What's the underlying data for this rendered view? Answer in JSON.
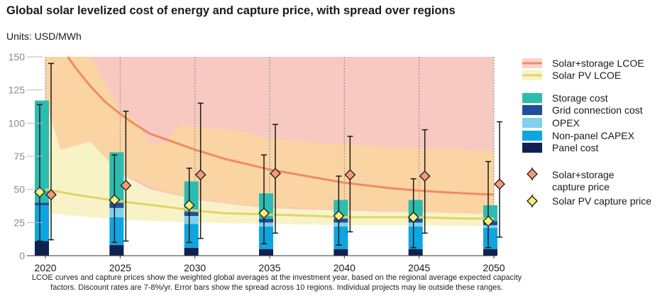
{
  "title": "Global solar levelized cost of energy and capture price, with spread over regions",
  "units": "Units: USD/MWh",
  "footnote": "LCOE curves and capture prices show the weighted global averages at the investment year, based on the regional average expected capacity factors. Discount rates are 7-8%/yr. Error bars show the spread across 10 regions. Individual projects may lie outside these ranges.",
  "colors": {
    "storage_cost": "#2cbcb0",
    "grid_connection_cost": "#1f4f9c",
    "opex": "#82d0ec",
    "non_panel_capex": "#0ea5e0",
    "panel_cost": "#0f2150",
    "storage_lcoe_line": "#f08b62",
    "storage_lcoe_band": "#f7c9c1",
    "storage_lcoe_band_inner": "#fbd4a3",
    "pv_lcoe_line": "#e0d56a",
    "pv_lcoe_band": "#f8f3c7",
    "storage_capture_marker": "#f39a78",
    "pv_capture_marker": "#f6ee7c"
  },
  "legend": {
    "lines": [
      {
        "label": "Solar+storage LCOE",
        "color_key": "storage_lcoe_line"
      },
      {
        "label": "Solar PV LCOE",
        "color_key": "pv_lcoe_line"
      }
    ],
    "bars": [
      {
        "label": "Storage cost",
        "color_key": "storage_cost"
      },
      {
        "label": "Grid connection cost",
        "color_key": "grid_connection_cost"
      },
      {
        "label": "OPEX",
        "color_key": "opex"
      },
      {
        "label": "Non-panel CAPEX",
        "color_key": "non_panel_capex"
      },
      {
        "label": "Panel cost",
        "color_key": "panel_cost"
      }
    ],
    "markers": [
      {
        "label": "Solar+storage capture price",
        "symbol": "diamond-icon",
        "color_key": "storage_capture_marker"
      },
      {
        "label": "Solar PV capture price",
        "symbol": "diamond-icon",
        "color_key": "pv_capture_marker"
      }
    ]
  },
  "chart_data": {
    "type": "bar",
    "xlabel": "",
    "ylabel": "",
    "ylim": [
      0,
      150
    ],
    "xlim": [
      2020,
      2050
    ],
    "yticks": [
      0,
      25,
      50,
      75,
      100,
      125,
      150
    ],
    "xticks": [
      2020,
      2025,
      2030,
      2035,
      2040,
      2045,
      2050
    ],
    "grid": true,
    "legend_position": "right",
    "categories": [
      "2020",
      "2025",
      "2030",
      "2035",
      "2040",
      "2045",
      "2050"
    ],
    "stacked_bars": [
      {
        "name": "Panel cost",
        "values": [
          11,
          8,
          6,
          5,
          5,
          5,
          5
        ]
      },
      {
        "name": "Non-panel CAPEX",
        "values": [
          27,
          21,
          18,
          17,
          17,
          17,
          16
        ]
      },
      {
        "name": "OPEX",
        "values": [
          0,
          7,
          6,
          3,
          3,
          3,
          2
        ]
      },
      {
        "name": "Grid connection cost",
        "values": [
          2,
          4,
          3,
          3,
          3,
          3,
          3
        ]
      },
      {
        "name": "Storage cost",
        "values": [
          77,
          38,
          23,
          19,
          14,
          14,
          12
        ]
      }
    ],
    "lines": [
      {
        "name": "Solar+storage LCOE",
        "x": [
          2021.5,
          2022,
          2023,
          2024,
          2025,
          2026,
          2027,
          2028,
          2029,
          2030,
          2032,
          2035,
          2038,
          2040,
          2043,
          2045,
          2048,
          2050
        ],
        "values": [
          150,
          142,
          128,
          116,
          107,
          99,
          92,
          88,
          84,
          80,
          73,
          65,
          59,
          55,
          51,
          49,
          47,
          46
        ]
      },
      {
        "name": "Solar PV LCOE",
        "x": [
          2020,
          2022,
          2025,
          2028,
          2030,
          2032,
          2035,
          2038,
          2040,
          2042,
          2045,
          2048,
          2050
        ],
        "values": [
          50,
          46,
          41,
          37,
          34,
          32,
          31,
          30,
          29,
          29,
          29,
          28,
          28
        ]
      }
    ],
    "storage_lcoe_spread": {
      "x": [
        2020,
        2021,
        2023,
        2025,
        2027,
        2029,
        2030,
        2031,
        2033,
        2035,
        2037,
        2040,
        2043,
        2045,
        2048,
        2050
      ],
      "low": [
        118,
        80,
        86,
        62,
        50,
        45,
        42,
        41,
        38,
        36,
        35,
        34,
        33,
        33,
        32,
        31
      ],
      "high": [
        150,
        150,
        150,
        150,
        150,
        150,
        150,
        150,
        150,
        150,
        150,
        150,
        150,
        150,
        150,
        150
      ]
    },
    "storage_lcoe_inner_spread": {
      "x": [
        2020,
        2021,
        2023,
        2025,
        2026,
        2027,
        2028,
        2029,
        2030,
        2031,
        2033,
        2035,
        2037,
        2040,
        2043,
        2045,
        2048,
        2050
      ],
      "low": [
        118,
        80,
        86,
        62,
        58,
        52,
        49,
        46,
        43,
        42,
        39,
        37,
        36,
        35,
        34,
        33,
        32,
        31
      ],
      "high": [
        150,
        150,
        150,
        110,
        103,
        84,
        86,
        98,
        97,
        96,
        94,
        88,
        86,
        84,
        82,
        81,
        80,
        79
      ]
    },
    "pv_lcoe_spread": {
      "x": [
        2020,
        2022,
        2024,
        2025,
        2028,
        2030,
        2035,
        2040,
        2045,
        2050
      ],
      "low": [
        32,
        30,
        28,
        27,
        26,
        25,
        24,
        23,
        23,
        22
      ],
      "high": [
        130,
        105,
        97,
        87,
        55,
        50,
        46,
        44,
        44,
        43
      ]
    },
    "storage_capture_price": {
      "name": "Solar+storage capture price",
      "values": [
        46,
        53,
        61,
        62,
        61,
        60,
        54
      ],
      "error_low": [
        12,
        11,
        13,
        17,
        18,
        17,
        14
      ],
      "error_high": [
        145,
        109,
        115,
        99,
        90,
        95,
        101
      ]
    },
    "pv_capture_price": {
      "name": "Solar PV capture price",
      "values": [
        48,
        42,
        38,
        32,
        30,
        29,
        26
      ],
      "error_low": [
        11,
        10,
        10,
        9,
        8,
        6,
        6
      ],
      "error_high": [
        114,
        76,
        66,
        76,
        60,
        58,
        71
      ]
    }
  }
}
